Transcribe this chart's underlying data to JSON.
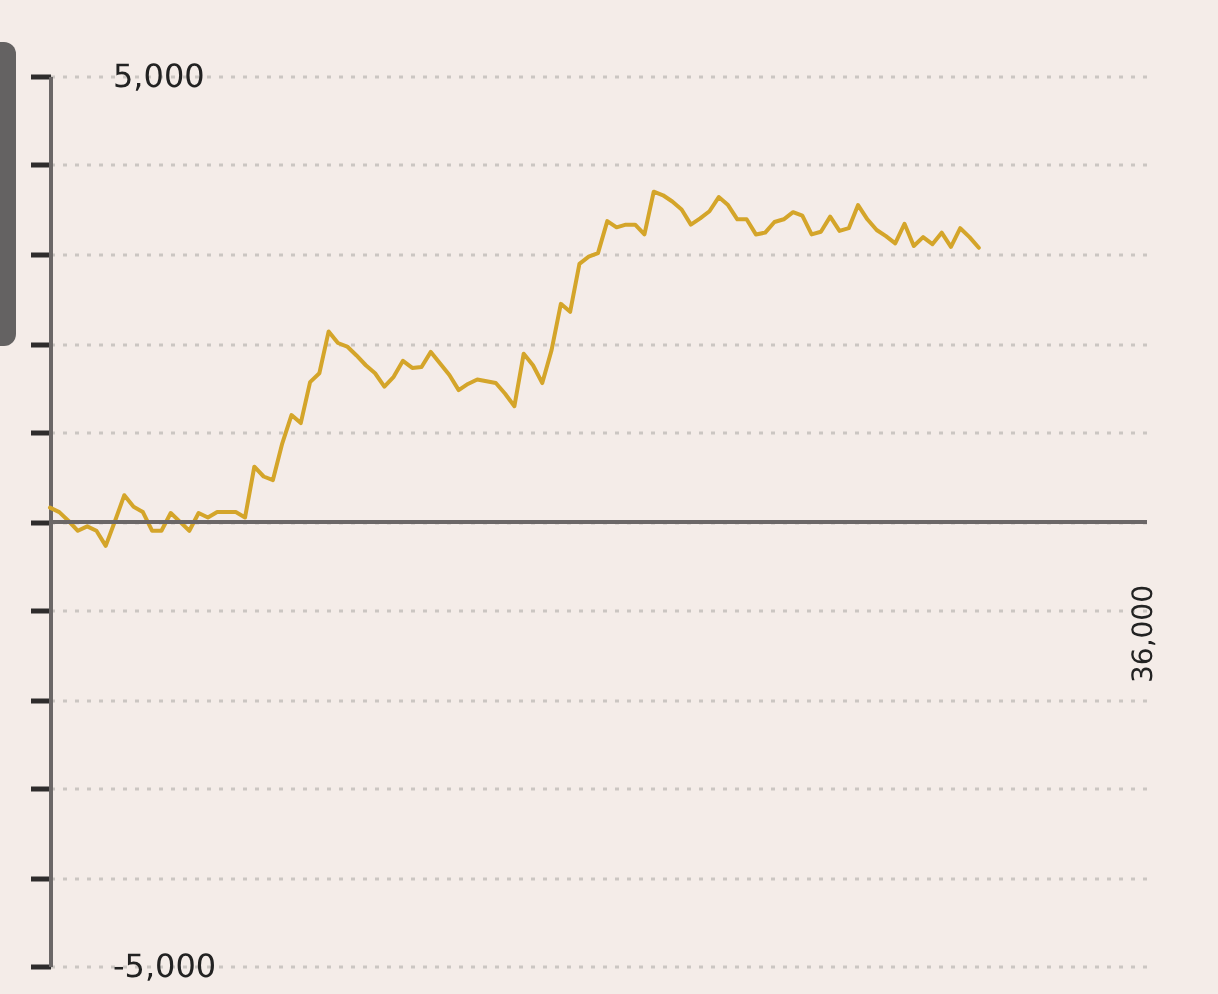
{
  "chart_data": {
    "type": "line",
    "categories": [
      null,
      null,
      null,
      null,
      null,
      null,
      null,
      null,
      null,
      null,
      null,
      null,
      null,
      null,
      null,
      null,
      null,
      null,
      null,
      null,
      null,
      null,
      null,
      null,
      null,
      null,
      null,
      null,
      null,
      null,
      null,
      null,
      null,
      null,
      null,
      null,
      null,
      null,
      null,
      null,
      null,
      null,
      null,
      null,
      null,
      null,
      null,
      null,
      null,
      null,
      null,
      null,
      null,
      null,
      null,
      null,
      null,
      null,
      null,
      null,
      null,
      null,
      null,
      null,
      null,
      null,
      null,
      null,
      null,
      null,
      null,
      null,
      null,
      null,
      null,
      null,
      null,
      null,
      null,
      null,
      null,
      null,
      null,
      null,
      null,
      null,
      null,
      null,
      null,
      null,
      null,
      null,
      null,
      null,
      null,
      null,
      null,
      null,
      null,
      null,
      null,
      null,
      null,
      null,
      null,
      null,
      null,
      null,
      null,
      null,
      null,
      null,
      null,
      null,
      null,
      null,
      null,
      null,
      null
    ],
    "series": [
      {
        "color": "#d4a52a",
        "values": [
          150,
          100,
          0,
          -110,
          -60,
          -110,
          -280,
          0,
          290,
          160,
          100,
          -110,
          -110,
          90,
          -10,
          -110,
          90,
          40,
          100,
          100,
          100,
          40,
          610,
          500,
          460,
          870,
          1190,
          1100,
          1560,
          1660,
          2130,
          2000,
          1960,
          1860,
          1750,
          1660,
          1510,
          1620,
          1800,
          1720,
          1730,
          1900,
          1770,
          1640,
          1470,
          1540,
          1590,
          1570,
          1550,
          1430,
          1290,
          1880,
          1750,
          1550,
          1920,
          2440,
          2350,
          2890,
          2970,
          3010,
          3370,
          3300,
          3330,
          3330,
          3220,
          3700,
          3660,
          3590,
          3500,
          3330,
          3400,
          3480,
          3640,
          3550,
          3390,
          3390,
          3220,
          3240,
          3360,
          3390,
          3470,
          3430,
          3220,
          3250,
          3420,
          3260,
          3290,
          3550,
          3390,
          3270,
          3200,
          3120,
          3340,
          3090,
          3190,
          3110,
          3240,
          3080,
          3290,
          3190,
          3070,
          null,
          null,
          null,
          null,
          null,
          null,
          null,
          null,
          null,
          null,
          null,
          null,
          null,
          null,
          null,
          null,
          null,
          null
        ]
      }
    ],
    "ylim": [
      -5000,
      5000
    ],
    "yticks": [
      {
        "value": -5000,
        "label": "-5,000"
      },
      {
        "value": -4000,
        "label": null
      },
      {
        "value": -3000,
        "label": null
      },
      {
        "value": -2000,
        "label": null
      },
      {
        "value": -1000,
        "label": null
      },
      {
        "value": 0,
        "label": null
      },
      {
        "value": 1000,
        "label": null
      },
      {
        "value": 2000,
        "label": null
      },
      {
        "value": 3000,
        "label": null
      },
      {
        "value": 4000,
        "label": null
      },
      {
        "value": 5000,
        "label": "5,000"
      }
    ],
    "annotations": [
      "36,000"
    ],
    "grid": "y",
    "line_style": "solid"
  }
}
